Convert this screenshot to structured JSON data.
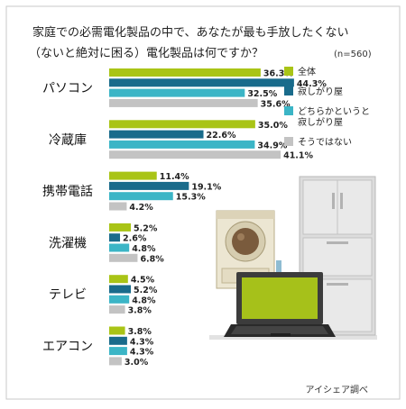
{
  "title_line1": "家庭での必需電化製品の中で、あなたが最も手放したくない",
  "title_line2": "（ないと絶対に困る）電化製品は何ですか？",
  "sample_size": "(n=560)",
  "credit": "アイシェア調べ",
  "chart_data": {
    "type": "bar",
    "orientation": "horizontal",
    "title": "家庭での必需電化製品の中で、あなたが最も手放したくない（ないと絶対に困る）電化製品は何ですか？",
    "unit": "%",
    "xlim": [
      0,
      48
    ],
    "grid": false,
    "legend_position": "right",
    "categories": [
      "パソコン",
      "冷蔵庫",
      "携帯電話",
      "洗濯機",
      "テレビ",
      "エアコン"
    ],
    "series": [
      {
        "name": "全体",
        "color": "#a9c416",
        "values": [
          36.3,
          35.0,
          11.4,
          5.2,
          4.5,
          3.8
        ],
        "labels": [
          "36.3%",
          "35.0%",
          "11.4%",
          "5.2%",
          "4.5%",
          "3.8%"
        ]
      },
      {
        "name": "寂しがり屋",
        "color": "#196b8b",
        "values": [
          44.3,
          22.6,
          19.1,
          2.6,
          5.2,
          4.3
        ],
        "labels": [
          "44.3%",
          "22.6%",
          "19.1%",
          "2.6%",
          "5.2%",
          "4.3%"
        ]
      },
      {
        "name": "どちらかというと寂しがり屋",
        "color": "#3bb5c6",
        "values": [
          32.5,
          34.9,
          15.3,
          4.8,
          4.8,
          4.3
        ],
        "labels": [
          "32.5%",
          "34.9%",
          "15.3%",
          "4.8%",
          "4.8%",
          "4.3%"
        ]
      },
      {
        "name": "そうではない",
        "color": "#c3c3c3",
        "values": [
          35.6,
          41.1,
          4.2,
          6.8,
          3.8,
          3.0
        ],
        "labels": [
          "35.6%",
          "41.1%",
          "4.2%",
          "6.8%",
          "3.8%",
          "3.0%"
        ]
      }
    ],
    "legend": [
      {
        "lines": [
          "全体"
        ],
        "color": "#a9c416"
      },
      {
        "lines": [
          "寂しがり屋"
        ],
        "color": "#196b8b"
      },
      {
        "lines": [
          "どちらかというと",
          "寂しがり屋"
        ],
        "color": "#3bb5c6"
      },
      {
        "lines": [
          "そうではない"
        ],
        "color": "#c3c3c3"
      }
    ]
  }
}
